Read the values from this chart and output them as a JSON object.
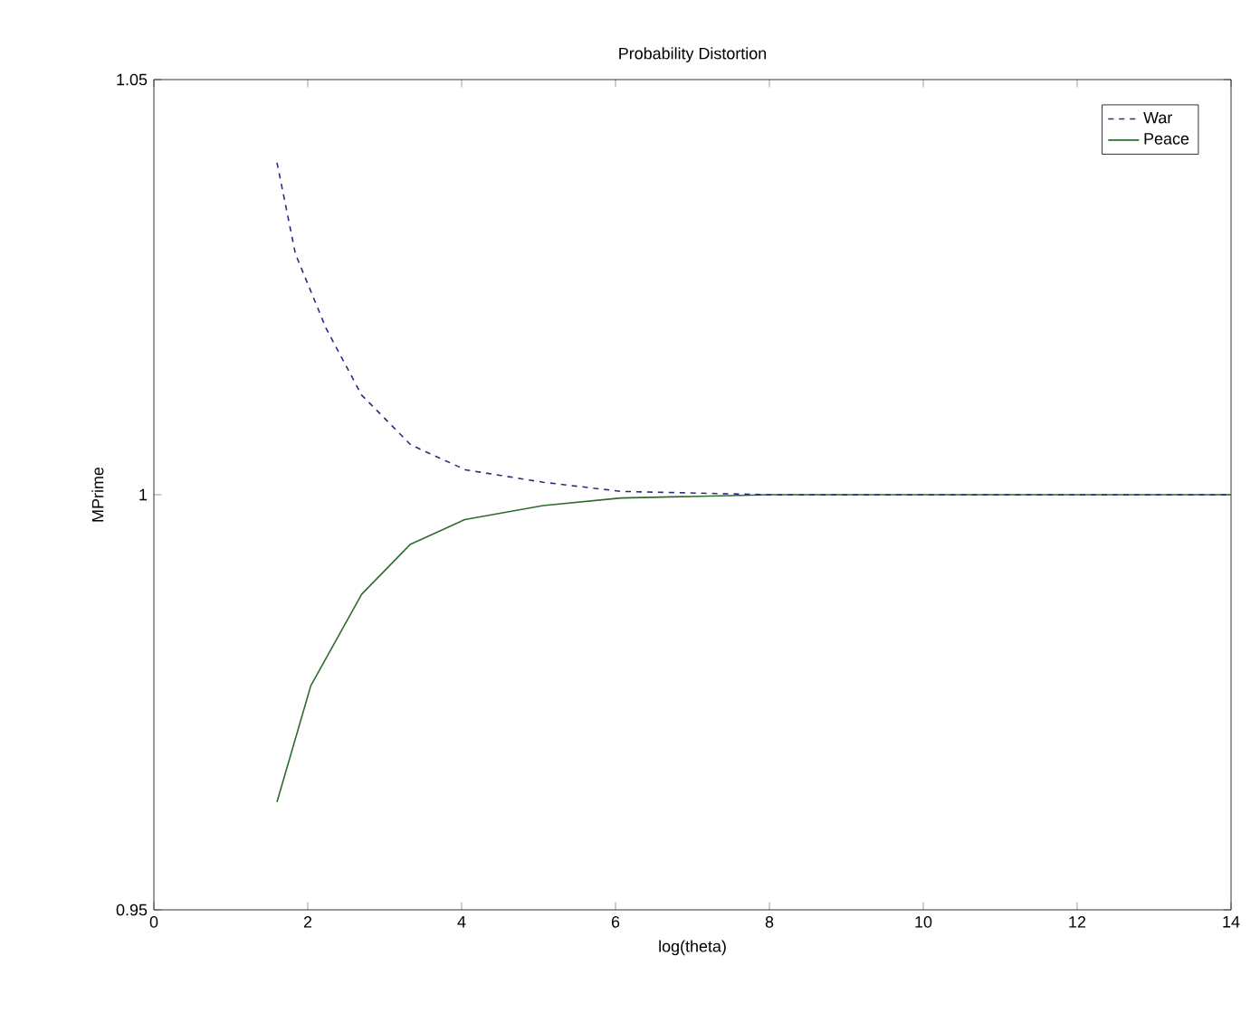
{
  "chart_data": {
    "type": "line",
    "title": "Probability Distortion",
    "xlabel": "log(theta)",
    "ylabel": "MPrime",
    "xlim": [
      0,
      14
    ],
    "xticks": [
      0,
      2,
      4,
      6,
      8,
      10,
      12,
      14
    ],
    "ylim": [
      0.95,
      1.05
    ],
    "yticks": [
      0.95,
      1,
      1.05
    ],
    "grid": false,
    "legend": "top right",
    "series": [
      {
        "name": "War",
        "color": "#2a2a80",
        "line_style": "dashed",
        "x": [
          1.6,
          1.84,
          2.24,
          2.7,
          3.34,
          4.05,
          5.06,
          6.07,
          8,
          10,
          12,
          14
        ],
        "values": [
          1.04,
          1.029,
          1.02,
          1.012,
          1.006,
          1.003,
          1.0015,
          1.0004,
          1,
          1,
          1,
          1
        ]
      },
      {
        "name": "Peace",
        "color": "#2e6b2e",
        "line_style": "solid",
        "x": [
          1.6,
          2.04,
          2.7,
          3.33,
          4.04,
          5.06,
          6.07,
          8,
          10,
          12,
          14
        ],
        "values": [
          0.963,
          0.977,
          0.988,
          0.994,
          0.997,
          0.9987,
          0.9996,
          1,
          1,
          1,
          1
        ]
      }
    ]
  }
}
